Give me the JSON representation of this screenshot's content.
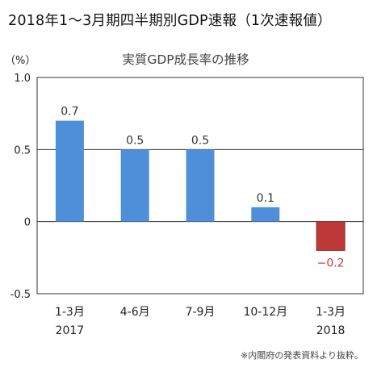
{
  "title": "2018年1～3月期四半期別GDP速報（1次速報値）",
  "chart_data": {
    "type": "bar",
    "title": "実質GDP成長率の推移",
    "unit": "（%）",
    "categories": [
      {
        "line1": "1-3月",
        "line2": "2017"
      },
      {
        "line1": "4-6月",
        "line2": ""
      },
      {
        "line1": "7-9月",
        "line2": ""
      },
      {
        "line1": "10-12月",
        "line2": ""
      },
      {
        "line1": "1-3月",
        "line2": "2018"
      }
    ],
    "values": [
      0.7,
      0.5,
      0.5,
      0.1,
      -0.2
    ],
    "value_labels": [
      "0.7",
      "0.5",
      "0.5",
      "0.1",
      "−0.2"
    ],
    "ylim": [
      -0.5,
      1.0
    ],
    "yticks": [
      {
        "value": 1.0,
        "label": "1.0"
      },
      {
        "value": 0.5,
        "label": "0.5"
      },
      {
        "value": 0,
        "label": "0"
      },
      {
        "value": -0.5,
        "label": "-0.5"
      }
    ],
    "grid": true,
    "colors": {
      "positive": "#4f8fd9",
      "negative": "#c0393a",
      "negative_label": "#c0393a"
    }
  },
  "source_note": "※内閣府の発表資料より抜粋。"
}
